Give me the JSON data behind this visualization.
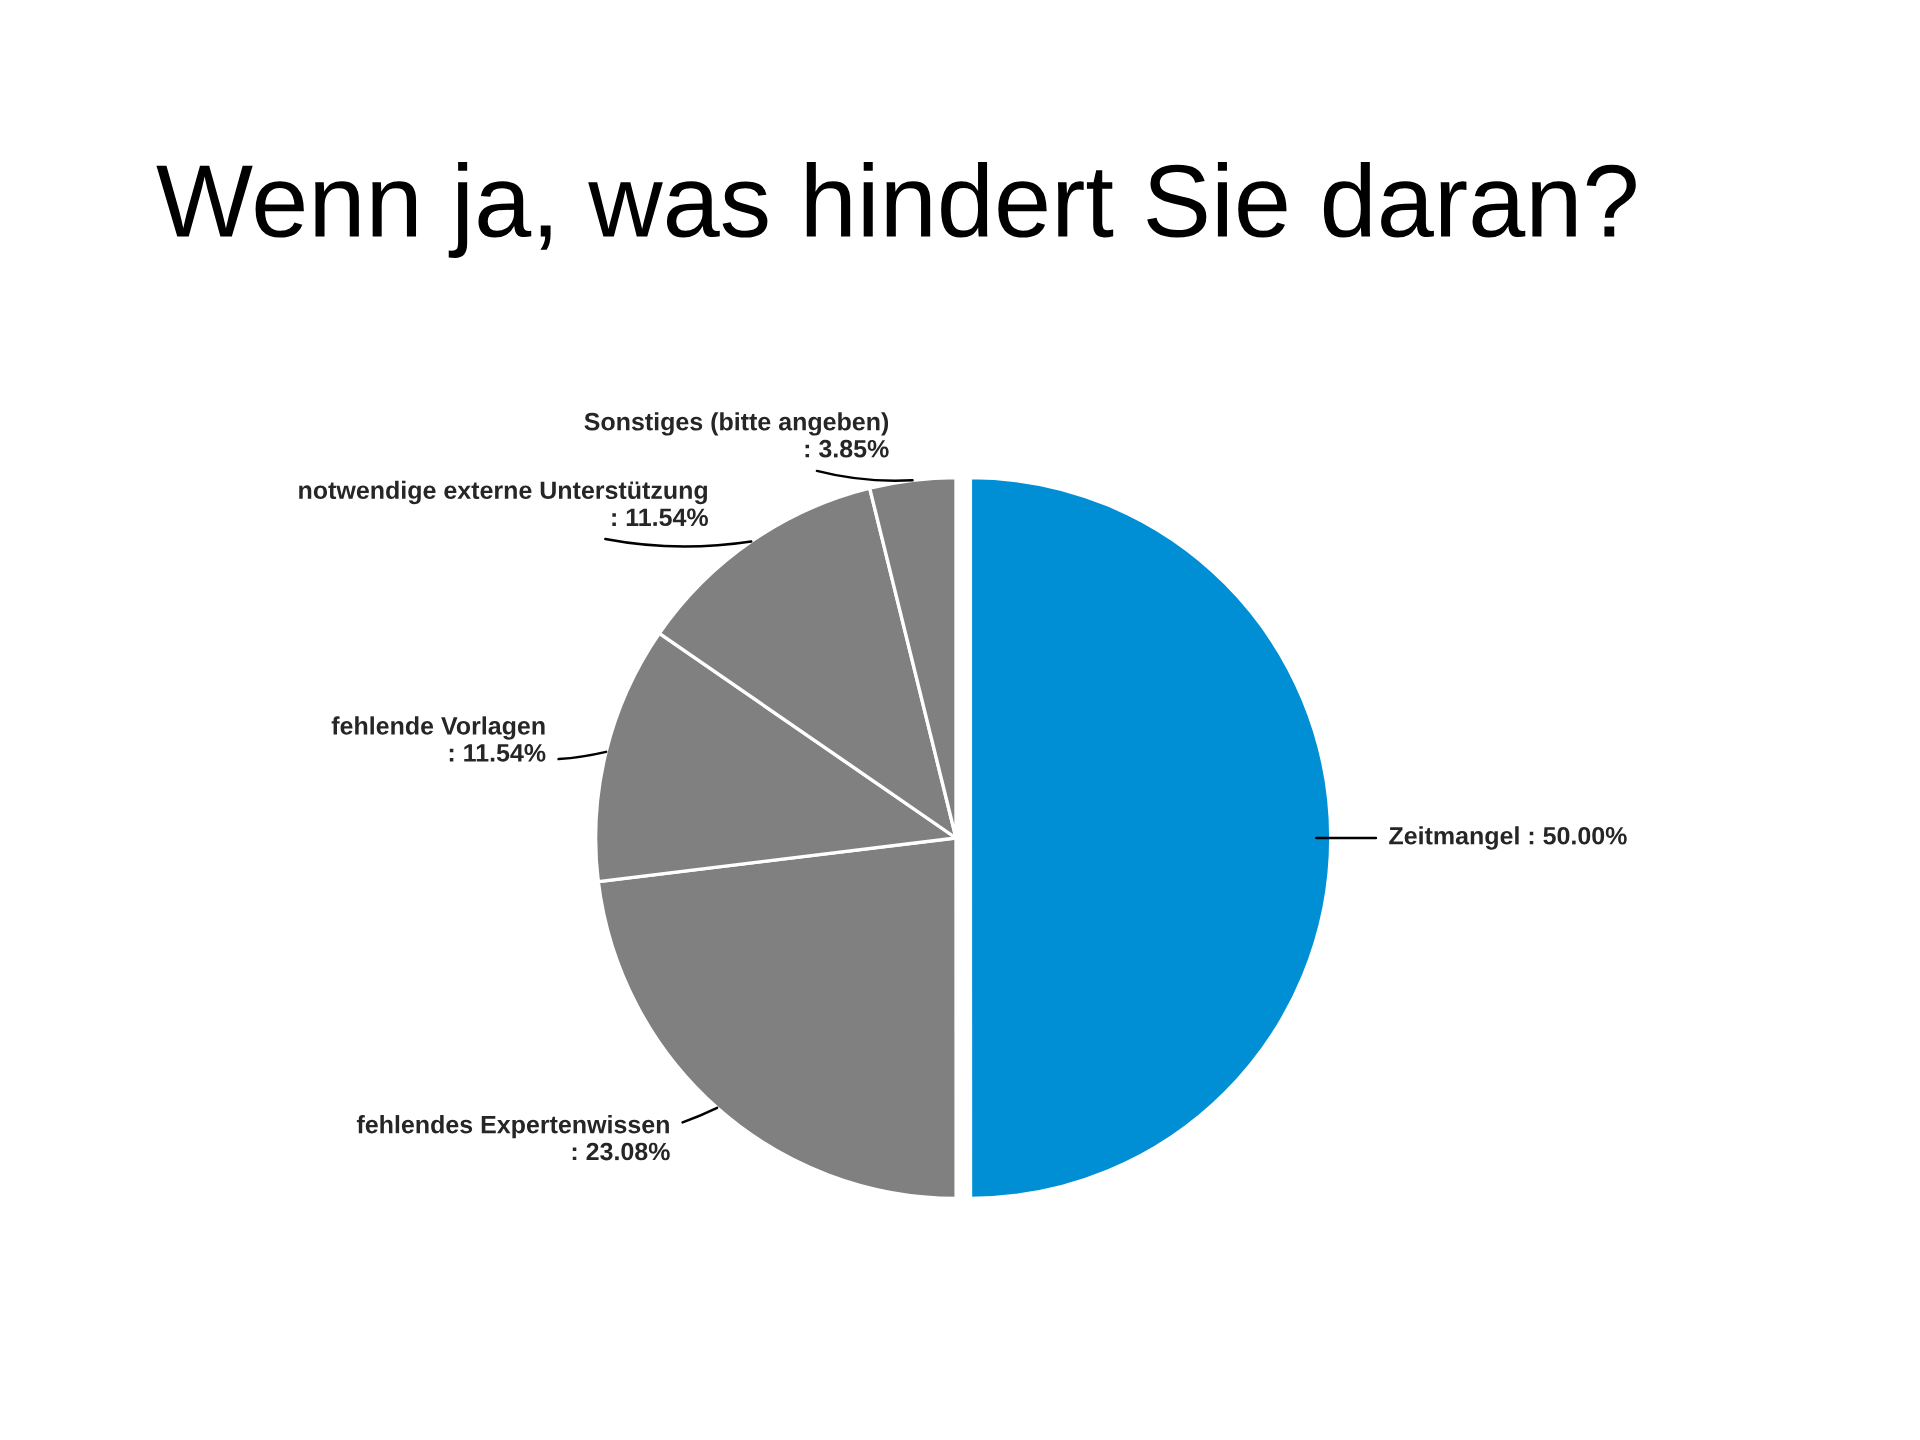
{
  "chart_data": {
    "type": "pie",
    "title": "Wenn ja, was hindert Sie daran?",
    "categories": [
      "Zeitmangel",
      "fehlendes Expertenwissen",
      "fehlende Vorlagen",
      "notwendige externe Unterstützung",
      "Sonstiges (bitte angeben)"
    ],
    "values": [
      50.0,
      23.08,
      11.54,
      11.54,
      3.85
    ],
    "colors": [
      "#008fd5",
      "#808080",
      "#808080",
      "#808080",
      "#808080"
    ],
    "value_labels": [
      ": 50.00%",
      ": 23.08%",
      ": 11.54%",
      ": 11.54%",
      ": 3.85%"
    ],
    "legend": false
  }
}
